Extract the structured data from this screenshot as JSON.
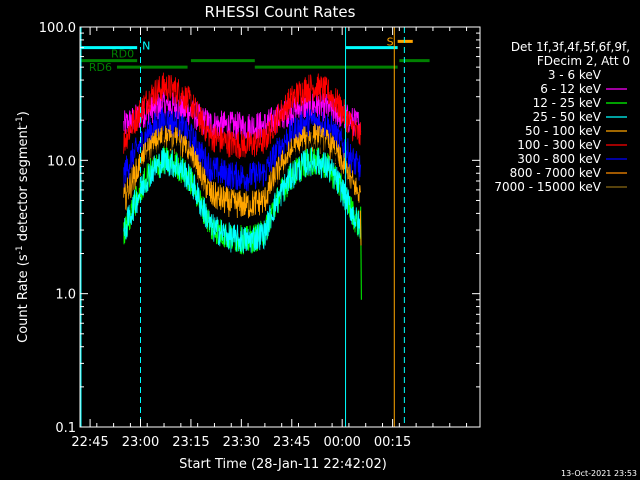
{
  "chart_data": {
    "type": "line",
    "title": "RHESSI Count Rates",
    "xlabel": "Start Time (28-Jan-11 22:42:02)",
    "ylabel_main": "Count Rate (s",
    "ylabel_exp1": "-1",
    "ylabel_mid": " detector segment",
    "ylabel_exp2": "-1",
    "ylabel_end": ")",
    "y_scale": "log",
    "ylim": [
      0.1,
      100
    ],
    "y_ticks": [
      {
        "value": 0.1,
        "label": "0.1"
      },
      {
        "value": 1,
        "label": "1.0"
      },
      {
        "value": 10,
        "label": "10.0"
      },
      {
        "value": 100,
        "label": "100.0"
      }
    ],
    "x_unit": "minutes since 22:42:02",
    "xlim": [
      0,
      119
    ],
    "x_ticks": [
      {
        "value": 3,
        "label": "22:45"
      },
      {
        "value": 18,
        "label": "23:00"
      },
      {
        "value": 33,
        "label": "23:15"
      },
      {
        "value": 48,
        "label": "23:30"
      },
      {
        "value": 63,
        "label": "23:45"
      },
      {
        "value": 78,
        "label": "00:00"
      },
      {
        "value": 93,
        "label": "00:15"
      }
    ],
    "legend_header": [
      "Det 1f,3f,4f,5f,6f,9f,",
      "FDecim 2, Att 0"
    ],
    "legend_placement": "right",
    "time_profile": {
      "x": [
        13,
        17,
        21,
        25,
        29,
        33,
        36,
        39,
        45,
        50,
        55,
        59,
        63,
        67,
        70,
        74,
        78,
        80,
        82,
        83.5
      ],
      "factor": [
        0.32,
        0.55,
        0.83,
        1.0,
        0.92,
        0.72,
        0.5,
        0.36,
        0.31,
        0.3,
        0.33,
        0.55,
        0.78,
        0.95,
        1.0,
        0.88,
        0.62,
        0.5,
        0.4,
        0.36
      ]
    },
    "series": [
      {
        "name": "3 - 6 keV",
        "color": "#000000",
        "peak": 12.5,
        "floor": 2.8
      },
      {
        "name": "6 - 12 keV",
        "color": "#ff00ff",
        "peak": 26,
        "floor": 18
      },
      {
        "name": "12 - 25 keV",
        "color": "#00ff00",
        "peak": 10,
        "floor": 2.5
      },
      {
        "name": "25 - 50 keV",
        "color": "#00ffff",
        "peak": 10,
        "floor": 2.5
      },
      {
        "name": "50 - 100 keV",
        "color": "#ffa500",
        "peak": 15,
        "floor": 4.6
      },
      {
        "name": "100 - 300 keV",
        "color": "#ff0000",
        "peak": 36,
        "floor": 13
      },
      {
        "name": "300 - 800 keV",
        "color": "#0000ff",
        "peak": 20,
        "floor": 7.5
      },
      {
        "name": "800 - 7000 keV",
        "color": "#ff8c00",
        "peak": 0,
        "floor": 0
      },
      {
        "name": "7000 - 15000 keV",
        "color": "#8b6914",
        "peak": 0,
        "floor": 0
      }
    ],
    "flag_bars": [
      {
        "label": "N",
        "color": "#00ffff",
        "y": 70,
        "segments": [
          [
            0,
            17
          ]
        ]
      },
      {
        "label": "",
        "color": "#00ffff",
        "y": 70,
        "segments": [
          [
            79,
            94.5
          ]
        ]
      },
      {
        "label": "RD0",
        "color": "#008000",
        "y": 56,
        "segments": [
          [
            0,
            17
          ],
          [
            33,
            52
          ],
          [
            95,
            104
          ]
        ]
      },
      {
        "label": "RD6",
        "color": "#008000",
        "y": 50,
        "segments": [
          [
            11,
            32
          ],
          [
            52,
            94.5
          ]
        ]
      },
      {
        "label": "S",
        "color": "#ffa500",
        "y": 78,
        "segments": [
          [
            94.5,
            99
          ]
        ]
      }
    ],
    "vertical_lines": [
      {
        "x": 0.3,
        "color": "#00ffff",
        "style": "solid"
      },
      {
        "x": 18,
        "color": "#00ffff",
        "style": "dashed"
      },
      {
        "x": 79,
        "color": "#00ffff",
        "style": "solid"
      },
      {
        "x": 93.5,
        "color": "#ffa500",
        "style": "solid"
      },
      {
        "x": 96.5,
        "color": "#00ffff",
        "style": "dashed"
      }
    ],
    "footer_timestamp": "13-Oct-2021 23:53"
  }
}
